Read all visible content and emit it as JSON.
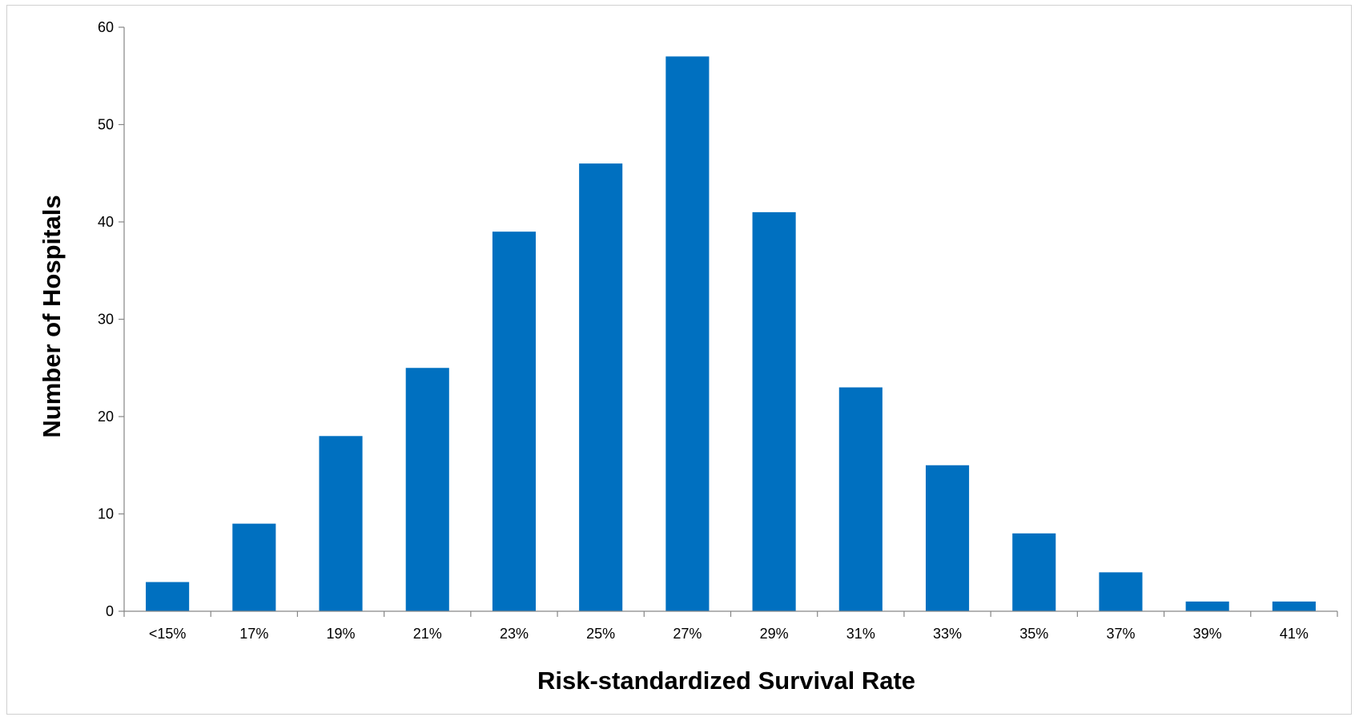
{
  "chart_data": {
    "type": "bar",
    "title": "",
    "xlabel": "Risk-standardized Survival Rate",
    "ylabel": "Number of Hospitals",
    "categories": [
      "<15%",
      "17%",
      "19%",
      "21%",
      "23%",
      "25%",
      "27%",
      "29%",
      "31%",
      "33%",
      "35%",
      "37%",
      "39%",
      "41%"
    ],
    "values": [
      3,
      9,
      18,
      25,
      39,
      46,
      57,
      41,
      23,
      15,
      8,
      4,
      1,
      1
    ],
    "ylim": [
      0,
      60
    ],
    "yticks": [
      "0",
      "10",
      "20",
      "30",
      "40",
      "50",
      "60"
    ],
    "grid": false,
    "legend": "none",
    "bar_color": "#0070C0",
    "axis_color": "#868686"
  }
}
